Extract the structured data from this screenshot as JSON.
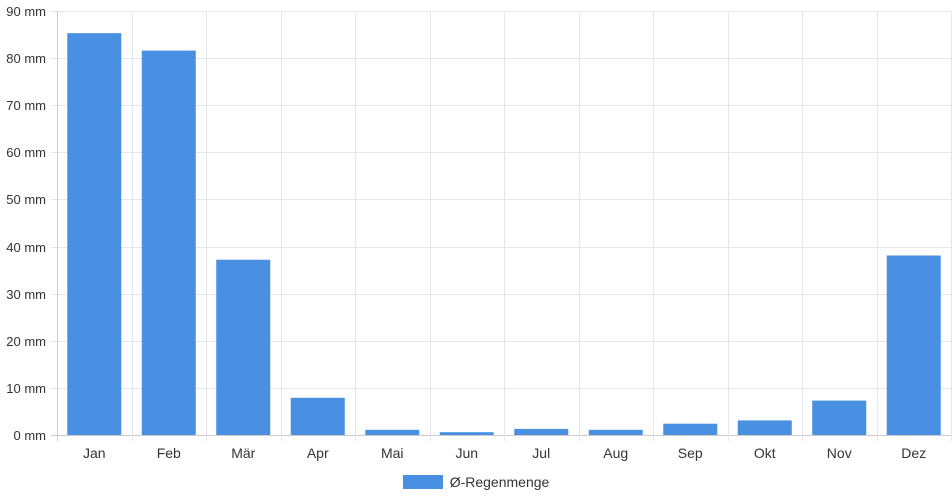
{
  "chart_data": {
    "type": "bar",
    "categories": [
      "Jan",
      "Feb",
      "Mär",
      "Apr",
      "Mai",
      "Jun",
      "Jul",
      "Aug",
      "Sep",
      "Okt",
      "Nov",
      "Dez"
    ],
    "series": [
      {
        "name": "Ø-Regenmenge",
        "values": [
          85.3,
          81.6,
          37.2,
          7.9,
          1.1,
          0.6,
          1.3,
          1.1,
          2.4,
          3.1,
          7.3,
          38.1
        ]
      }
    ],
    "yticks": [
      "0 mm",
      "10 mm",
      "20 mm",
      "30 mm",
      "40 mm",
      "50 mm",
      "60 mm",
      "70 mm",
      "80 mm",
      "90 mm"
    ],
    "ylim": [
      0,
      90
    ],
    "grid": true,
    "legend_position": "bottom",
    "colors": {
      "bar": "#4a90e2",
      "grid": "#e6e6e6",
      "axis": "#cccccc",
      "text": "#333333"
    }
  }
}
